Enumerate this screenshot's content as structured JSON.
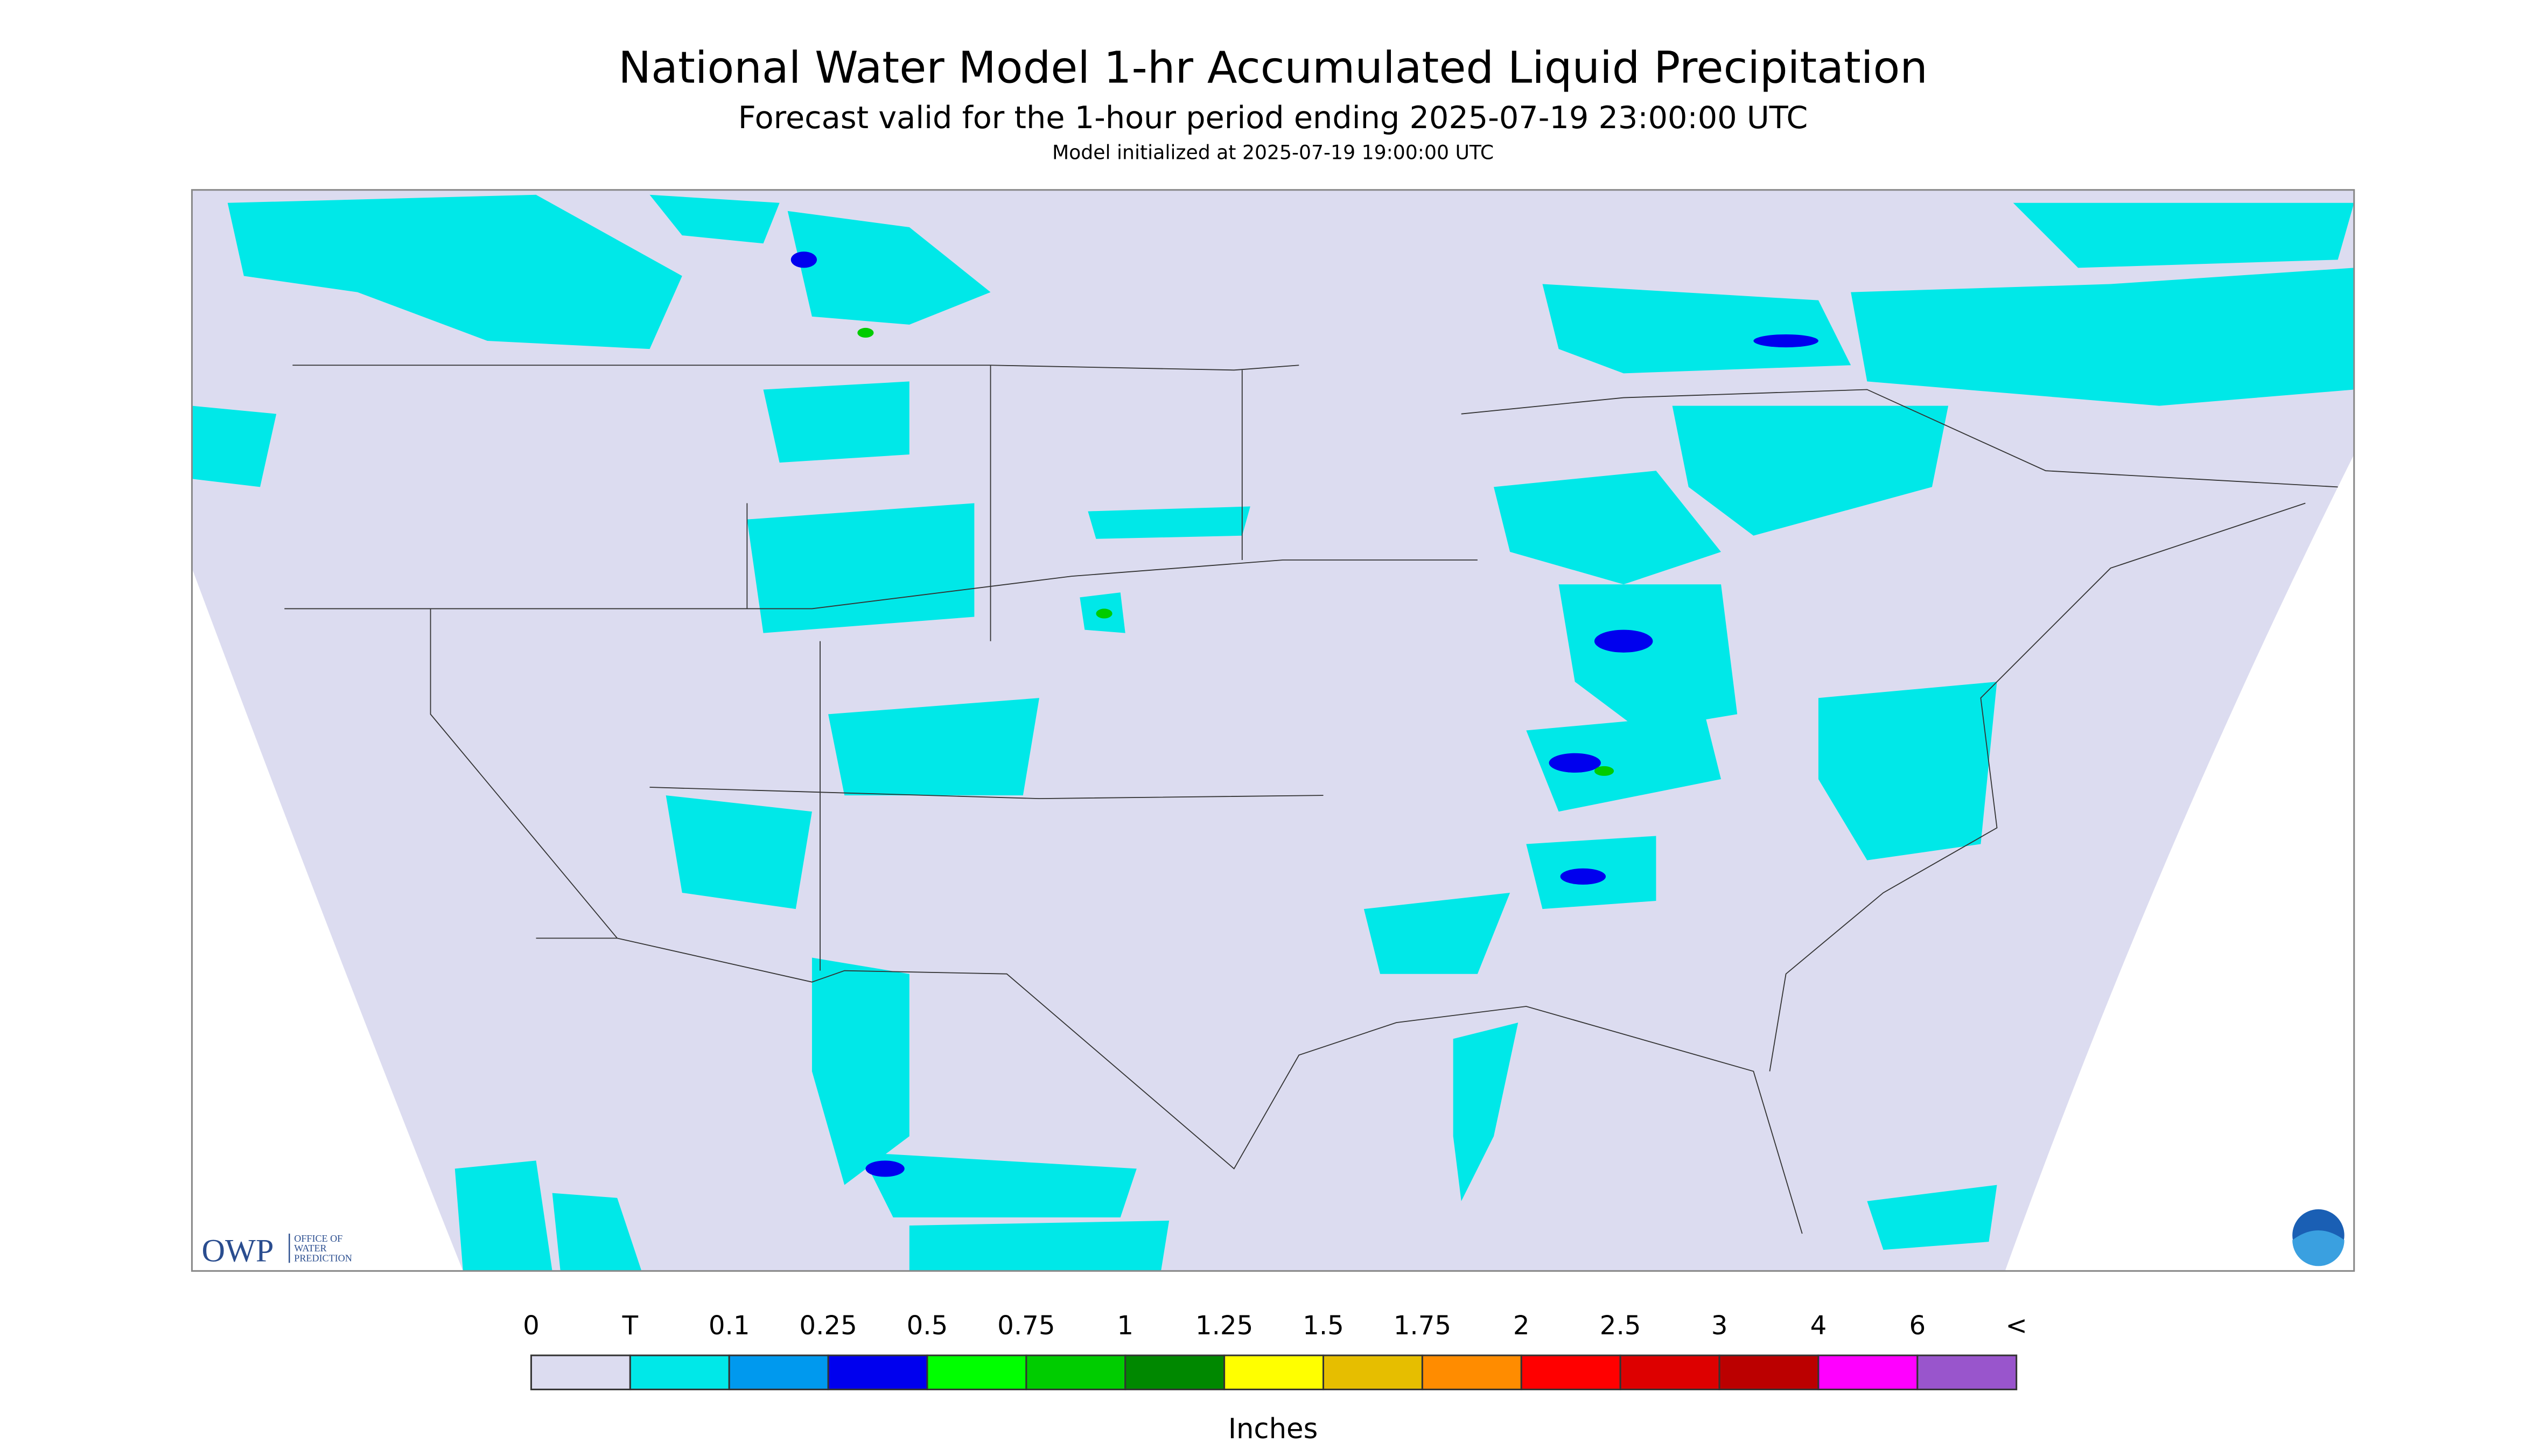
{
  "header": {
    "title": "National Water Model 1-hr Accumulated Liquid Precipitation",
    "subtitle": "Forecast valid for the 1-hour period ending 2025-07-19 23:00:00 UTC",
    "init": "Model initialized at 2025-07-19 19:00:00 UTC"
  },
  "legend": {
    "labels": [
      "0",
      "T",
      "0.1",
      "0.25",
      "0.5",
      "0.75",
      "1",
      "1.25",
      "1.5",
      "1.75",
      "2",
      "2.5",
      "3",
      "4",
      "6",
      "<"
    ],
    "colors": [
      "#dcdcf0",
      "#00e8e8",
      "#0099ee",
      "#0000ee",
      "#00ff00",
      "#00cc00",
      "#008800",
      "#ffff00",
      "#e6be00",
      "#ff8c00",
      "#ff0000",
      "#dd0000",
      "#bb0000",
      "#ff00ff",
      "#9955cc"
    ],
    "unit": "Inches"
  },
  "logo": {
    "short": "OWP",
    "line1": "OFFICE OF",
    "line2": "WATER",
    "line3": "PREDICTION"
  }
}
